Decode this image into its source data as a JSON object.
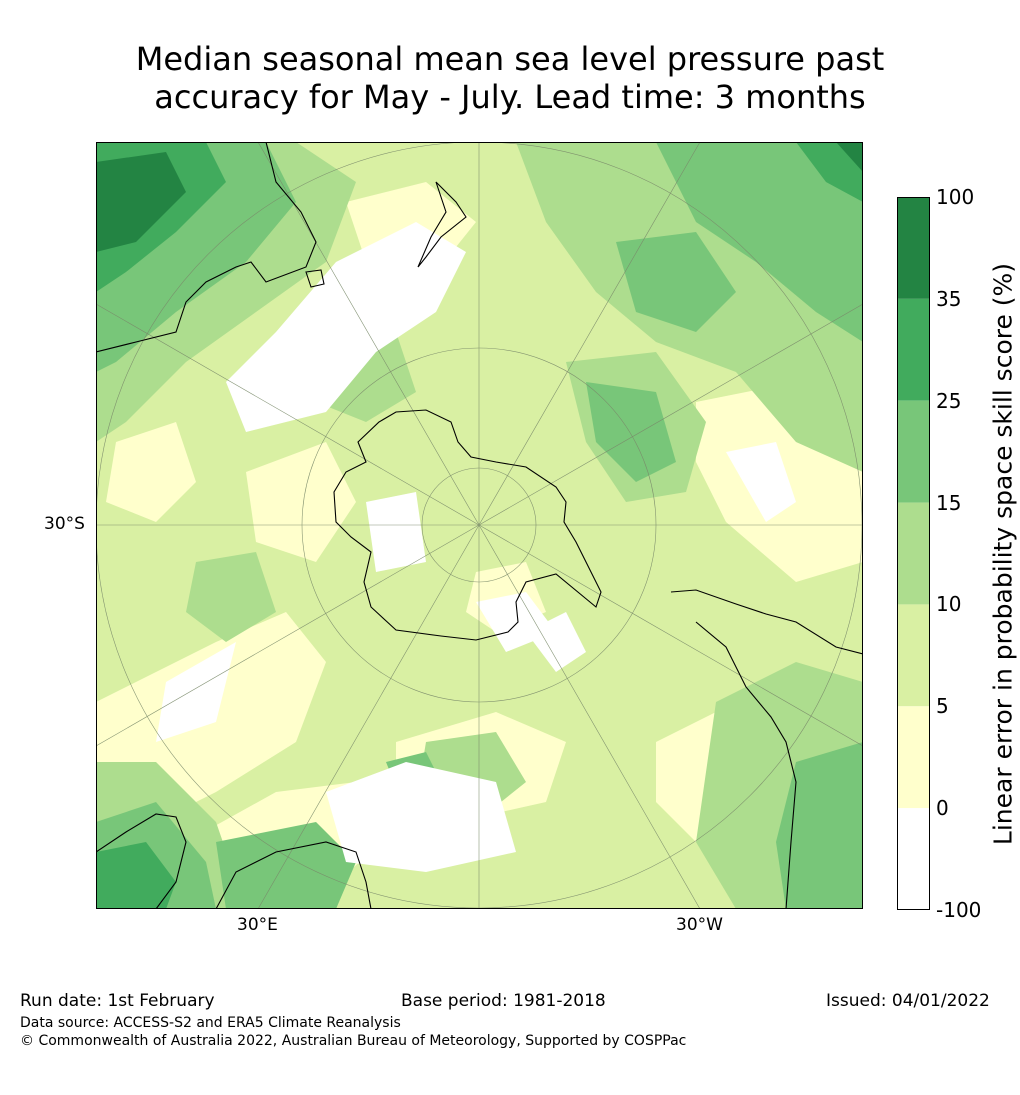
{
  "title": {
    "line1": "Median seasonal mean sea level pressure past",
    "line2": "accuracy for May - July. Lead time: 3 months"
  },
  "map": {
    "projection": "south polar stereographic",
    "lat_labels": [
      "30°S"
    ],
    "lon_labels": [
      "30°E",
      "30°W"
    ],
    "ocean_dominant_category": "5-10",
    "land_outline_color": "#000000",
    "graticule_color": "#7a8a6a"
  },
  "colorbar": {
    "label": "Linear error in probability space skill score (%)",
    "bins": [
      {
        "lower": "-100",
        "upper": "0",
        "color": "#ffffff"
      },
      {
        "lower": "0",
        "upper": "5",
        "color": "#ffffcc"
      },
      {
        "lower": "5",
        "upper": "10",
        "color": "#d9f0a3"
      },
      {
        "lower": "10",
        "upper": "15",
        "color": "#addd8e"
      },
      {
        "lower": "15",
        "upper": "25",
        "color": "#78c679"
      },
      {
        "lower": "25",
        "upper": "35",
        "color": "#41ab5d"
      },
      {
        "lower": "35",
        "upper": "100",
        "color": "#238443"
      }
    ],
    "tick_labels": [
      "100",
      "35",
      "25",
      "15",
      "10",
      "5",
      "0",
      "-100"
    ]
  },
  "footer": {
    "run_date": "Run date: 1st February",
    "base_period": "Base period: 1981-2018",
    "issued": "Issued: 04/01/2022",
    "data_source": "Data source: ACCESS-S2 and ERA5 Climate Reanalysis",
    "copyright": "© Commonwealth of Australia 2022, Australian Bureau of Meteorology, Supported by COSPPac"
  }
}
